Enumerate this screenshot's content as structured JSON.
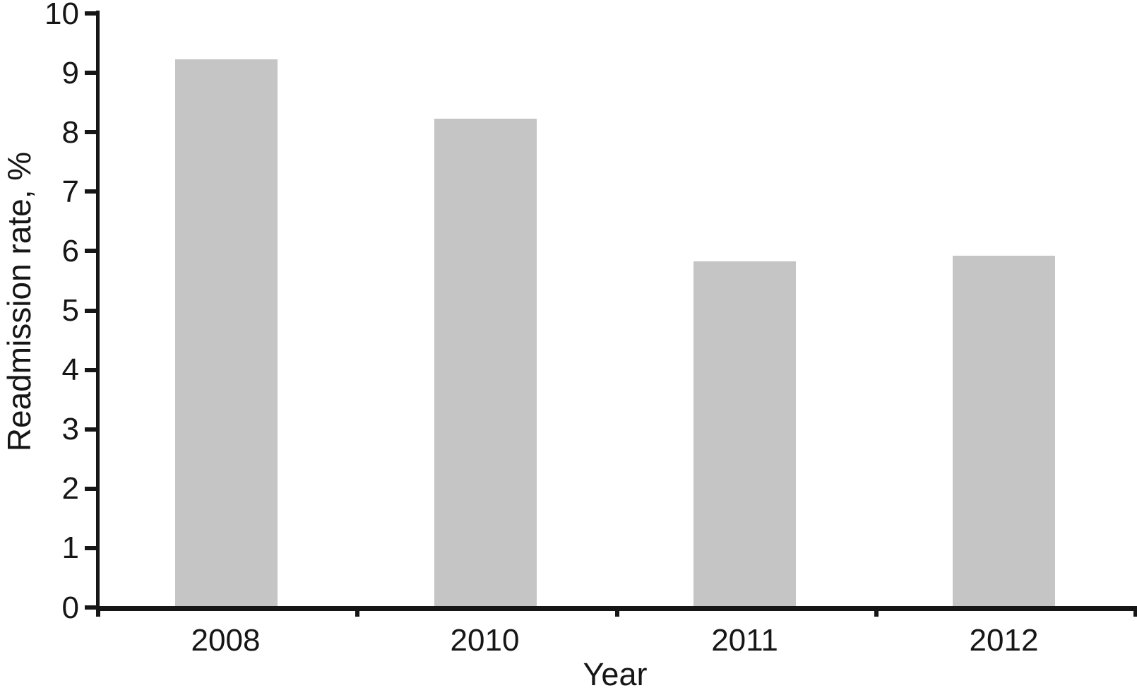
{
  "chart_data": {
    "type": "bar",
    "title": "",
    "categories": [
      "2008",
      "2010",
      "2011",
      "2012"
    ],
    "values": [
      9.2,
      8.2,
      5.8,
      5.9
    ],
    "xlabel": "Year",
    "ylabel": "Readmission rate, %",
    "ylim": [
      0,
      10
    ],
    "yticks": [
      0,
      1,
      2,
      3,
      4,
      5,
      6,
      7,
      8,
      9,
      10
    ],
    "grid": false,
    "legend": "none",
    "bar_color": "#c5c5c5",
    "axis_color": "#161616"
  }
}
